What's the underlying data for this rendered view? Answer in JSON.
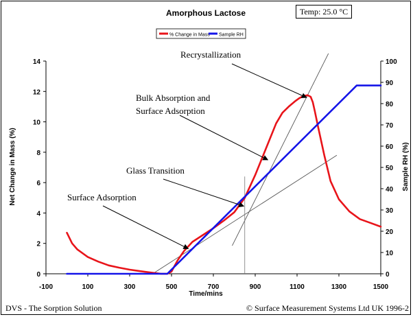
{
  "chart_data": {
    "type": "line",
    "title": "Amorphous Lactose",
    "temp_label": "Temp:  25.0 °C",
    "xlabel": "Time/mins",
    "ylabel_left": "Net Change in Mass (%)",
    "ylabel_right": "Sample RH (%)",
    "xlim": [
      -100,
      1500
    ],
    "ylim_left": [
      0,
      14
    ],
    "ylim_right": [
      0,
      100
    ],
    "x_ticks": [
      "-100",
      "100",
      "300",
      "500",
      "700",
      "900",
      "1100",
      "1300",
      "1500"
    ],
    "y_left_ticks": [
      "0",
      "2",
      "4",
      "6",
      "8",
      "10",
      "12",
      "14"
    ],
    "y_right_ticks": [
      "0",
      "10",
      "20",
      "30",
      "40",
      "50",
      "60",
      "70",
      "80",
      "90",
      "100"
    ],
    "grid": false,
    "legend_position": "top-center",
    "series": [
      {
        "name": "% Change in Mass",
        "color": "#e8141a",
        "axis": "left",
        "x": [
          0,
          25,
          50,
          100,
          150,
          200,
          250,
          300,
          350,
          400,
          450,
          480,
          500,
          530,
          560,
          600,
          650,
          700,
          750,
          800,
          850,
          900,
          950,
          1000,
          1030,
          1060,
          1090,
          1110,
          1130,
          1150,
          1165,
          1175,
          1185,
          1200,
          1230,
          1260,
          1300,
          1350,
          1400,
          1450,
          1500
        ],
        "values": [
          2.7,
          2.0,
          1.6,
          1.1,
          0.8,
          0.55,
          0.4,
          0.27,
          0.17,
          0.08,
          0.0,
          0.0,
          0.15,
          0.9,
          1.5,
          2.1,
          2.55,
          3.0,
          3.5,
          4.05,
          5.0,
          6.5,
          8.2,
          9.9,
          10.6,
          11.0,
          11.35,
          11.55,
          11.7,
          11.75,
          11.65,
          11.3,
          10.7,
          9.7,
          7.8,
          6.1,
          4.9,
          4.1,
          3.6,
          3.35,
          3.1
        ]
      },
      {
        "name": "Sample RH",
        "color": "#1414e8",
        "axis": "right",
        "x": [
          0,
          480,
          1385,
          1500
        ],
        "values": [
          0,
          0,
          88.5,
          88.5
        ]
      }
    ],
    "annotations": [
      {
        "id": "surface-adsorption",
        "text": "Surface Adsorption",
        "target_x": 580,
        "target_y": 1.65
      },
      {
        "id": "glass-transition",
        "text": "Glass Transition",
        "target_x": 845,
        "target_y": 4.45
      },
      {
        "id": "bulk-absorption",
        "text_lines": [
          "Bulk Absorption and",
          "Surface Adsorption"
        ],
        "target_x": 960,
        "target_y": 7.5
      },
      {
        "id": "recrystallization",
        "text": "Recrystallization",
        "target_x": 1145,
        "target_y": 11.6
      }
    ],
    "tangent_lines": [
      {
        "from": [
          410,
          0
        ],
        "to": [
          1290,
          7.8
        ]
      },
      {
        "from": [
          790,
          1.85
        ],
        "to": [
          1250,
          14.5
        ]
      }
    ],
    "vertical_marker_x": 850
  },
  "footer": {
    "left": "DVS - The Sorption Solution",
    "right": "© Surface Measurement Systems Ltd UK 1996-2"
  }
}
